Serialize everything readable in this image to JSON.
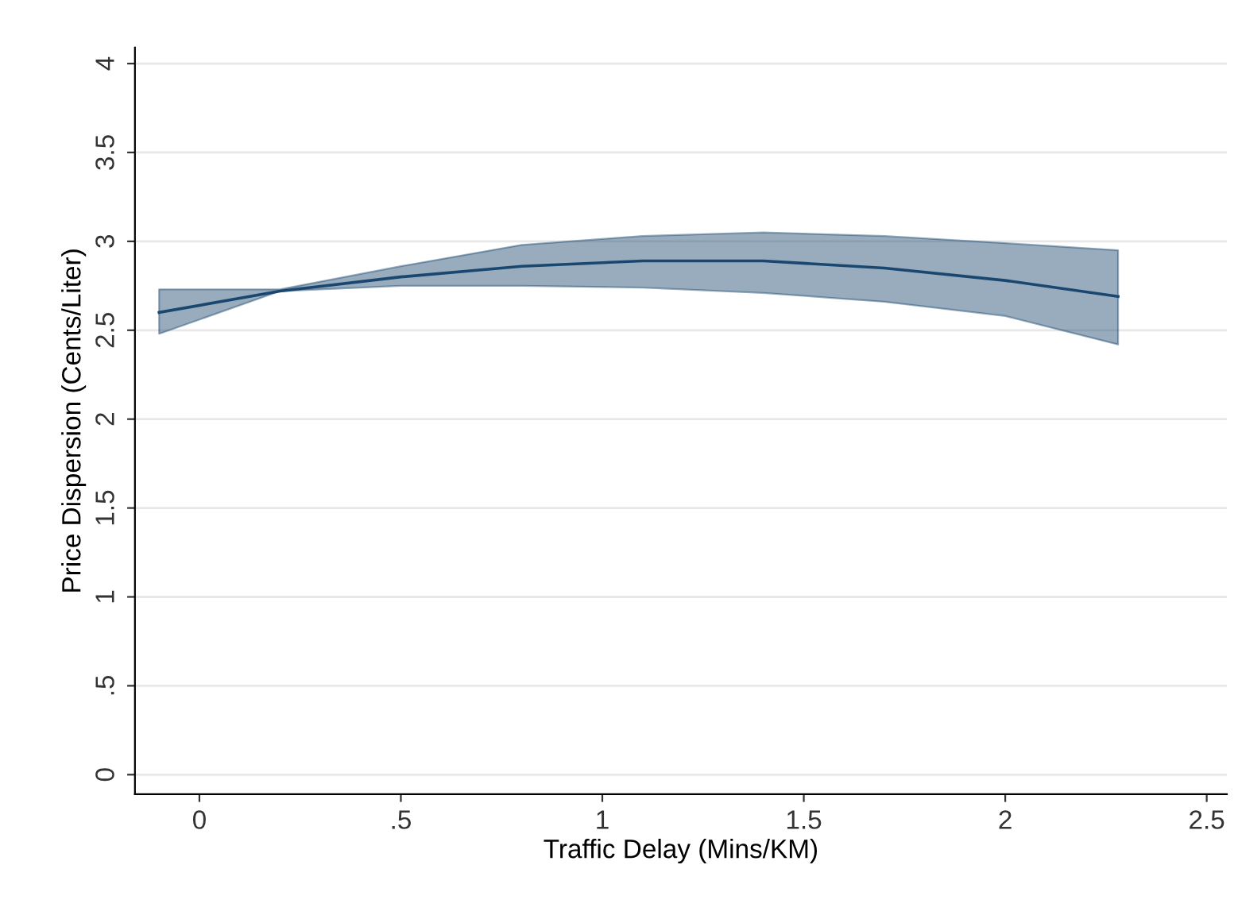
{
  "chart_data": {
    "type": "line",
    "xlabel": "Traffic Delay (Mins/KM)",
    "ylabel": "Price Dispersion (Cents/Liter)",
    "x": [
      -0.1,
      0.2,
      0.5,
      0.8,
      1.1,
      1.4,
      1.7,
      2.0,
      2.28
    ],
    "series": [
      {
        "color": "#1a476f",
        "values": [
          2.6,
          2.72,
          2.8,
          2.86,
          2.89,
          2.89,
          2.85,
          2.78,
          2.69
        ],
        "lower": [
          2.48,
          2.72,
          2.75,
          2.75,
          2.74,
          2.71,
          2.66,
          2.58,
          2.42
        ],
        "upper": [
          2.73,
          2.73,
          2.86,
          2.98,
          3.03,
          3.05,
          3.03,
          2.99,
          2.95
        ]
      }
    ],
    "xlim": [
      -0.16,
      2.55
    ],
    "ylim": [
      -0.11,
      4.09
    ],
    "xticks": [
      0,
      {
        "value": 0.5,
        "label": ".5"
      },
      1,
      1.5,
      2,
      2.5
    ],
    "yticks": [
      0,
      {
        "value": 0.5,
        "label": ".5"
      },
      1,
      1.5,
      2,
      2.5,
      3,
      3.5,
      4
    ],
    "grid": "y",
    "legend": false,
    "marker": "none",
    "line_style": "solid"
  }
}
